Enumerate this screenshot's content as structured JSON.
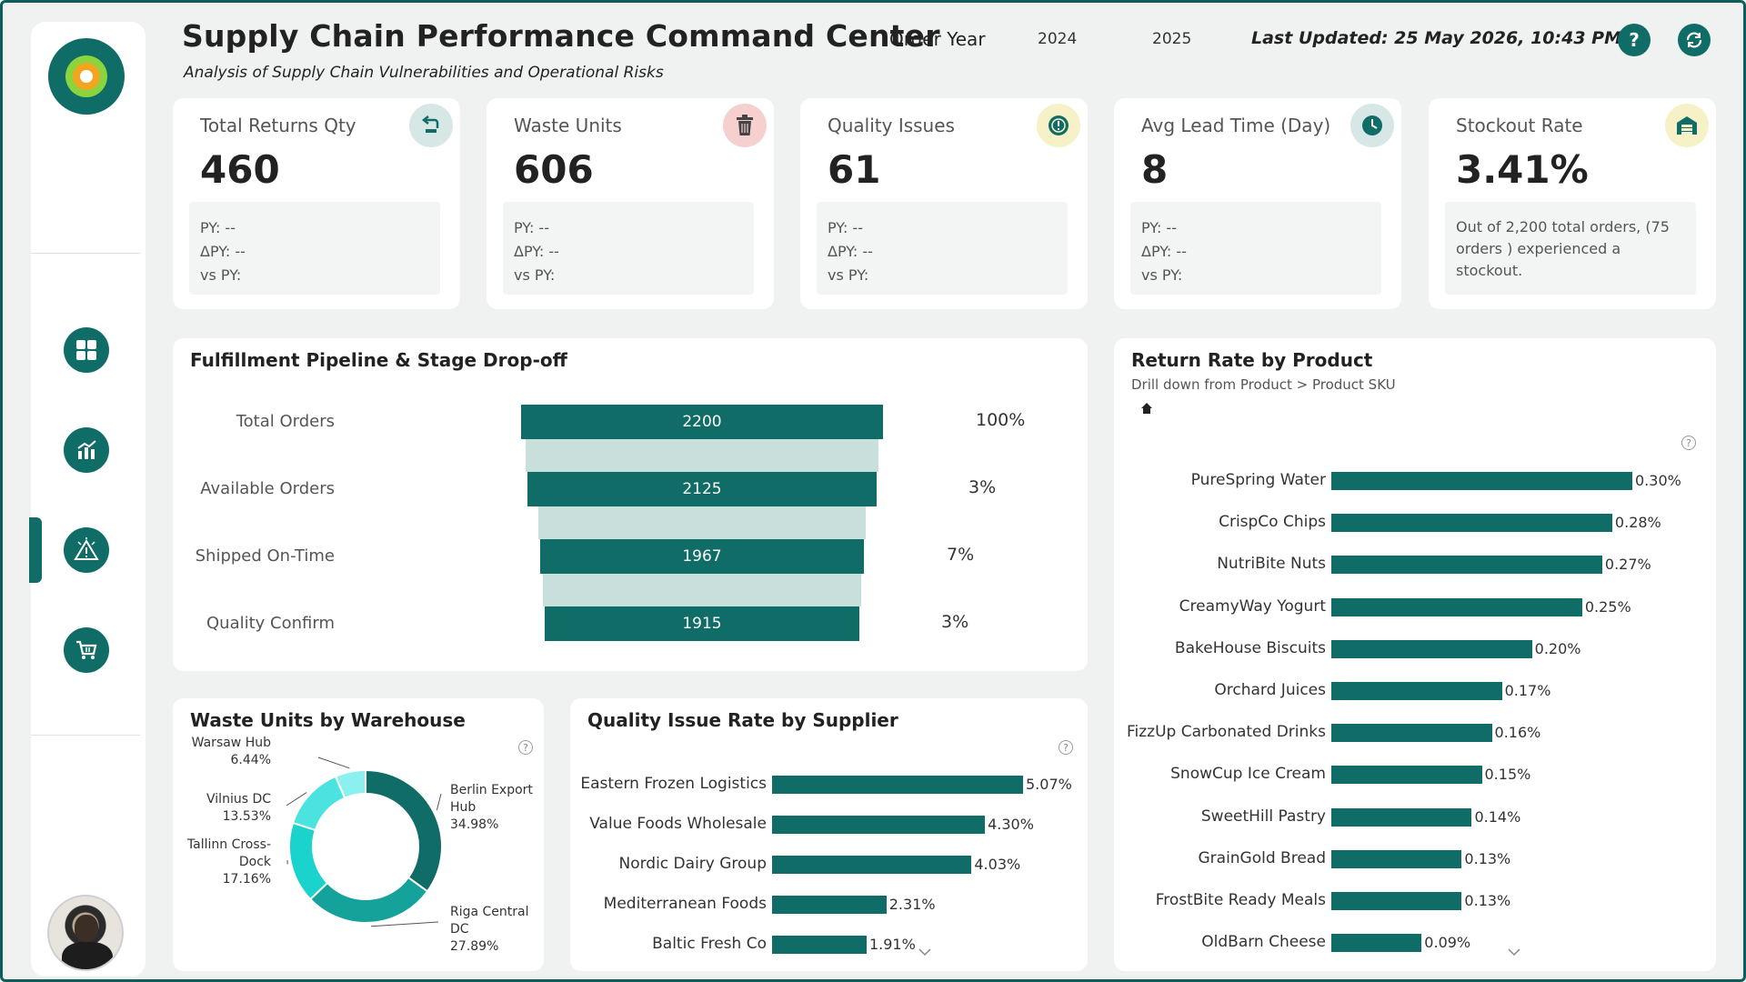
{
  "header": {
    "title": "Supply Chain Performance Command Center",
    "subtitle": "Analysis of Supply Chain Vulnerabilities and Operational Risks",
    "order_year_label": "Order Year",
    "years": [
      "2024",
      "2025"
    ],
    "last_updated": "Last Updated: 25 May 2026, 10:43 PM",
    "help_icon": "?"
  },
  "sidebar": {
    "nav": [
      {
        "icon": "dashboard-grid-icon"
      },
      {
        "icon": "bar-chart-icon"
      },
      {
        "icon": "warning-icon",
        "active": true
      },
      {
        "icon": "cart-icon"
      }
    ]
  },
  "kpis": [
    {
      "label": "Total Returns Qty",
      "value": "460",
      "py": "PY: --",
      "dpy": "ΔPY: --",
      "vspy": "vs PY:",
      "icon": "return-icon",
      "badge_color": "#d7e7e5"
    },
    {
      "label": "Waste Units",
      "value": "606",
      "py": "PY: --",
      "dpy": "ΔPY: --",
      "vspy": "vs PY:",
      "icon": "trash-icon",
      "badge_color": "#f6cfcf"
    },
    {
      "label": "Quality Issues",
      "value": "61",
      "py": "PY: --",
      "dpy": "ΔPY: --",
      "vspy": "vs PY:",
      "icon": "alert-icon",
      "badge_color": "#f7f1c7"
    },
    {
      "label": "Avg Lead Time (Day)",
      "value": "8",
      "py": "PY: --",
      "dpy": "ΔPY: --",
      "vspy": "vs PY:",
      "icon": "clock-icon",
      "badge_color": "#d7e7e5"
    },
    {
      "label": "Stockout Rate",
      "value": "3.41%",
      "note": "Out of 2,200 total orders, (75 orders ) experienced a stockout.",
      "icon": "warehouse-icon",
      "badge_color": "#f7f1c7"
    }
  ],
  "funnel": {
    "title": "Fulfillment Pipeline & Stage Drop-off",
    "stages": [
      {
        "label": "Total Orders",
        "value": "2200",
        "pct": "100%"
      },
      {
        "label": "Available Orders",
        "value": "2125",
        "pct": "3%"
      },
      {
        "label": "Shipped On-Time",
        "value": "1967",
        "pct": "7%"
      },
      {
        "label": "Quality Confirm",
        "value": "1915",
        "pct": "3%"
      }
    ]
  },
  "waste": {
    "title": "Waste Units by Warehouse"
  },
  "supplier": {
    "title": "Quality Issue Rate by Supplier"
  },
  "returns": {
    "title": "Return Rate by Product",
    "subtitle": "Drill down from Product > Product SKU"
  },
  "chart_data": [
    {
      "type": "pie",
      "title": "Waste Units by Warehouse",
      "categories": [
        "Berlin Export Hub",
        "Riga Central DC",
        "Tallinn Cross-Dock",
        "Vilnius DC",
        "Warsaw Hub"
      ],
      "values": [
        34.98,
        27.89,
        17.16,
        13.53,
        6.44
      ],
      "value_labels": [
        "34.98%",
        "27.89%",
        "17.16%",
        "13.53%",
        "6.44%"
      ],
      "colors": [
        "#0f6c67",
        "#14a29a",
        "#19d3cc",
        "#4ae3e0",
        "#8cf0ee"
      ]
    },
    {
      "type": "bar",
      "title": "Quality Issue Rate by Supplier",
      "categories": [
        "Eastern Frozen Logistics",
        "Value Foods Wholesale",
        "Nordic Dairy Group",
        "Mediterranean Foods",
        "Baltic Fresh Co"
      ],
      "values": [
        5.07,
        4.3,
        4.03,
        2.31,
        1.91
      ],
      "value_labels": [
        "5.07%",
        "4.30%",
        "4.03%",
        "2.31%",
        "1.91%"
      ],
      "xlim": [
        0,
        5.07
      ]
    },
    {
      "type": "bar",
      "title": "Return Rate by Product",
      "categories": [
        "PureSpring Water",
        "CrispCo Chips",
        "NutriBite Nuts",
        "CreamyWay Yogurt",
        "BakeHouse Biscuits",
        "Orchard Juices",
        "FizzUp Carbonated Drinks",
        "SnowCup Ice Cream",
        "SweetHill Pastry",
        "GrainGold Bread",
        "FrostBite Ready Meals",
        "OldBarn Cheese"
      ],
      "values": [
        0.3,
        0.28,
        0.27,
        0.25,
        0.2,
        0.17,
        0.16,
        0.15,
        0.14,
        0.13,
        0.13,
        0.09
      ],
      "value_labels": [
        "0.30%",
        "0.28%",
        "0.27%",
        "0.25%",
        "0.20%",
        "0.17%",
        "0.16%",
        "0.15%",
        "0.14%",
        "0.13%",
        "0.13%",
        "0.09%"
      ],
      "xlim": [
        0,
        0.3
      ]
    }
  ]
}
